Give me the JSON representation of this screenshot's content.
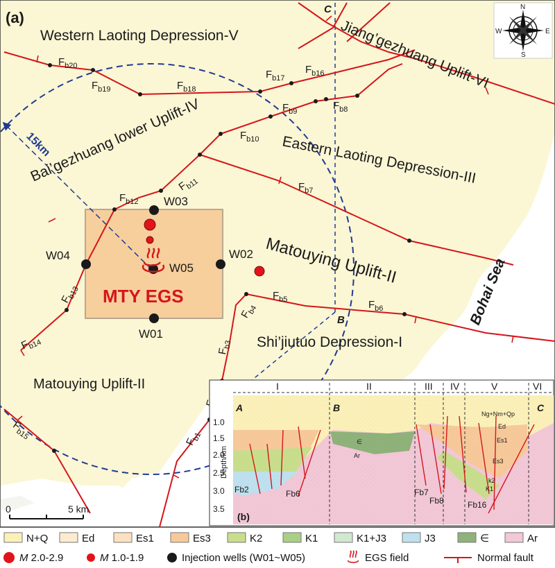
{
  "panel_a_label": "(a)",
  "panel_b_label": "(b)",
  "regions": {
    "western_laoting": "Western Laoting Depression-V",
    "jianggezhuang": "Jiang’gezhuang Uplift-VI",
    "baigezhuang": "Bai’gezhuang lower Uplift-IV",
    "eastern_laoting": "Eastern Laoting Depression-III",
    "matouying_east": "Matouying Uplift-II",
    "matouying_west": "Matouying Uplift-II",
    "shijiutuo": "Shi’jiutuo Depression-I",
    "bohai_sea": "Bohai Sea"
  },
  "faults": {
    "fb1": "1",
    "fb2": "2",
    "fb3": "3",
    "fb4": "4",
    "fb5": "5",
    "fb6": "6",
    "fb7": "7",
    "fb8": "8",
    "fb9": "9",
    "fb10": "10",
    "fb11": "11",
    "fb12": "12",
    "fb13": "13",
    "fb14": "14",
    "fb15": "15",
    "fb16": "16",
    "fb17": "17",
    "fb18": "18",
    "fb19": "19",
    "fb20": "20",
    "prefix": "F",
    "sub": "b"
  },
  "wells": {
    "w01": "W01",
    "w02": "W02",
    "w03": "W03",
    "w04": "W04",
    "w05": "W05"
  },
  "egs_label": "MTY EGS",
  "radius_label": "15km",
  "section_points": {
    "a": "A",
    "b": "B",
    "c": "C"
  },
  "compass": {
    "n": "N",
    "s": "S",
    "e": "E",
    "w": "W"
  },
  "scale_bar": {
    "start": "0",
    "end": "5 km"
  },
  "cross_section": {
    "zones": [
      "I",
      "II",
      "III",
      "IV",
      "V",
      "VI"
    ],
    "y_axis_label": "Depth/km",
    "y_ticks": [
      "1.0",
      "1.5",
      "2.0",
      "2.5",
      "3.0",
      "3.5"
    ],
    "fault_labels": [
      "Fb2",
      "Fb6",
      "Fb7",
      "Fb8",
      "Fb16"
    ],
    "unit_labels": [
      "Ng+Nm+Qp",
      "Ed",
      "Es1",
      "Es3",
      "k2",
      "K1",
      "Ar",
      "∈"
    ]
  },
  "legend": {
    "strata": [
      {
        "label": "N+Q",
        "color": "#fbf0b8"
      },
      {
        "label": "Ed",
        "color": "#fcebcf"
      },
      {
        "label": "Es1",
        "color": "#fde0c0"
      },
      {
        "label": "Es3",
        "color": "#f7c99a"
      },
      {
        "label": "K2",
        "color": "#c8de8c"
      },
      {
        "label": "K1",
        "color": "#a9cf86"
      },
      {
        "label": "K1+J3",
        "color": "#cfe8cf"
      },
      {
        "label": "J3",
        "color": "#bfe0ee"
      },
      {
        "label": "∈",
        "color": "#8fb27a"
      },
      {
        "label": "Ar",
        "color": "#f2c7d6"
      }
    ],
    "mag_large": "M 2.0-2.9",
    "mag_small": "M 1.0-1.9",
    "injection": "Injection wells (W01~W05)",
    "egs_field": "EGS field",
    "normal_fault": "Normal fault"
  },
  "colors": {
    "land": "#fbf6d4",
    "sea": "#ffffff",
    "fault": "#d4161b",
    "egs_box": "#f7cf9c",
    "dash": "#1f3a93",
    "quake": "#e2141b"
  }
}
